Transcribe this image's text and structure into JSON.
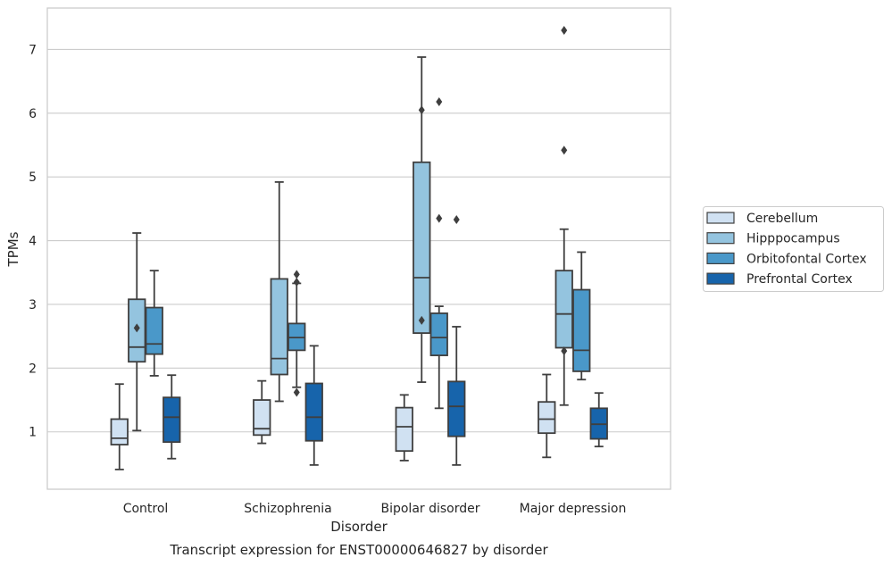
{
  "chart_data": {
    "type": "boxplot",
    "title": "Transcript expression for ENST00000646827 by disorder",
    "xlabel": "Disorder",
    "ylabel": "TPMs",
    "ylim": [
      0.1,
      7.65
    ],
    "yticks": [
      1,
      2,
      3,
      4,
      5,
      6,
      7
    ],
    "grid": true,
    "legend_position": "center-right, outside plot",
    "categories": [
      "Control",
      "Schizophrenia",
      "Bipolar disorder",
      "Major depression"
    ],
    "series": [
      {
        "name": "Cerebellum",
        "color": "#d0e1f2",
        "boxes": [
          {
            "whislo": 0.41,
            "q1": 0.8,
            "med": 0.9,
            "q3": 1.2,
            "whishi": 1.75,
            "fliers": []
          },
          {
            "whislo": 0.82,
            "q1": 0.95,
            "med": 1.05,
            "q3": 1.5,
            "whishi": 1.8,
            "fliers": []
          },
          {
            "whislo": 0.55,
            "q1": 0.7,
            "med": 1.08,
            "q3": 1.38,
            "whishi": 1.58,
            "fliers": []
          },
          {
            "whislo": 0.6,
            "q1": 0.98,
            "med": 1.2,
            "q3": 1.47,
            "whishi": 1.9,
            "fliers": []
          }
        ]
      },
      {
        "name": "Hipppocampus",
        "color": "#94c4df",
        "boxes": [
          {
            "whislo": 1.02,
            "q1": 2.1,
            "med": 2.33,
            "q3": 3.08,
            "whishi": 4.12,
            "fliers": [
              2.63
            ]
          },
          {
            "whislo": 1.48,
            "q1": 1.9,
            "med": 2.15,
            "q3": 3.4,
            "whishi": 4.92,
            "fliers": []
          },
          {
            "whislo": 1.78,
            "q1": 2.55,
            "med": 3.42,
            "q3": 5.23,
            "whishi": 6.88,
            "fliers": [
              2.75,
              6.05
            ]
          },
          {
            "whislo": 1.42,
            "q1": 2.32,
            "med": 2.85,
            "q3": 3.53,
            "whishi": 4.18,
            "fliers": [
              2.27,
              5.42,
              7.3
            ]
          }
        ]
      },
      {
        "name": "Orbitofontal Cortex",
        "color": "#4a98c9",
        "boxes": [
          {
            "whislo": 1.88,
            "q1": 2.22,
            "med": 2.38,
            "q3": 2.95,
            "whishi": 3.53,
            "fliers": []
          },
          {
            "whislo": 1.7,
            "q1": 2.28,
            "med": 2.48,
            "q3": 2.7,
            "whishi": 3.33,
            "fliers": [
              1.62,
              3.35,
              3.47
            ]
          },
          {
            "whislo": 1.37,
            "q1": 2.2,
            "med": 2.48,
            "q3": 2.86,
            "whishi": 2.97,
            "fliers": [
              4.35,
              6.18
            ]
          },
          {
            "whislo": 1.82,
            "q1": 1.95,
            "med": 2.28,
            "q3": 3.23,
            "whishi": 3.82,
            "fliers": []
          }
        ]
      },
      {
        "name": "Prefrontal Cortex",
        "color": "#1764ab",
        "boxes": [
          {
            "whislo": 0.58,
            "q1": 0.84,
            "med": 1.23,
            "q3": 1.54,
            "whishi": 1.89,
            "fliers": []
          },
          {
            "whislo": 0.48,
            "q1": 0.86,
            "med": 1.23,
            "q3": 1.76,
            "whishi": 2.35,
            "fliers": []
          },
          {
            "whislo": 0.48,
            "q1": 0.93,
            "med": 1.4,
            "q3": 1.79,
            "whishi": 2.65,
            "fliers": [
              4.33
            ]
          },
          {
            "whislo": 0.77,
            "q1": 0.89,
            "med": 1.12,
            "q3": 1.37,
            "whishi": 1.61,
            "fliers": []
          }
        ]
      }
    ]
  },
  "colors": {
    "grid": "#cccccc",
    "frame": "#cccccc",
    "box_edge": "#3f3f3f",
    "legend_edge": "#cccccc"
  }
}
